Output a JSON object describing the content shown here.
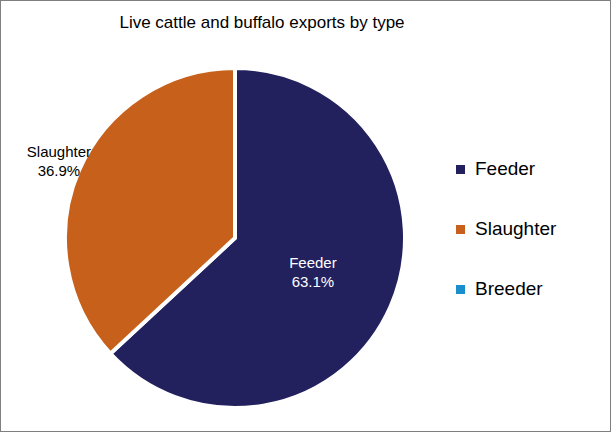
{
  "chart_data": {
    "type": "pie",
    "title": "Live cattle and buffalo exports by type",
    "categories": [
      "Feeder",
      "Slaughter",
      "Breeder"
    ],
    "values": [
      63.1,
      36.9,
      0
    ],
    "value_labels": [
      "63.1%",
      "36.9%",
      null
    ],
    "colors": [
      "#22215e",
      "#c6601a",
      "#1b8fcb"
    ],
    "data_labels": true,
    "legend": "right"
  }
}
